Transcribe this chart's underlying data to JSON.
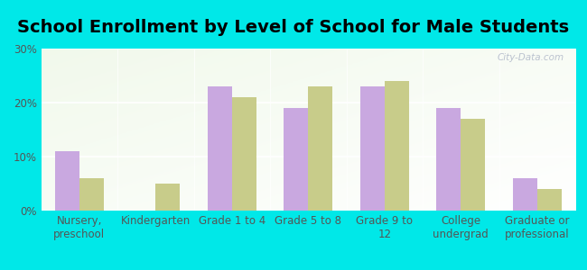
{
  "title": "School Enrollment by Level of School for Male Students",
  "categories": [
    "Nursery,\npreschool",
    "Kindergarten",
    "Grade 1 to 4",
    "Grade 5 to 8",
    "Grade 9 to\n12",
    "College\nundergrad",
    "Graduate or\nprofessional"
  ],
  "golf_manor": [
    11,
    0,
    23,
    19,
    23,
    19,
    6
  ],
  "ohio": [
    6,
    5,
    21,
    23,
    24,
    17,
    4
  ],
  "golf_manor_color": "#c9a8e0",
  "ohio_color": "#c8cc8a",
  "background_color": "#00e8e8",
  "plot_bg_color": "#eef3e2",
  "ylim": [
    0,
    30
  ],
  "yticks": [
    0,
    10,
    20,
    30
  ],
  "ytick_labels": [
    "0%",
    "10%",
    "20%",
    "30%"
  ],
  "title_fontsize": 14,
  "tick_fontsize": 8.5,
  "legend_fontsize": 9.5,
  "bar_width": 0.32,
  "watermark": "City-Data.com"
}
